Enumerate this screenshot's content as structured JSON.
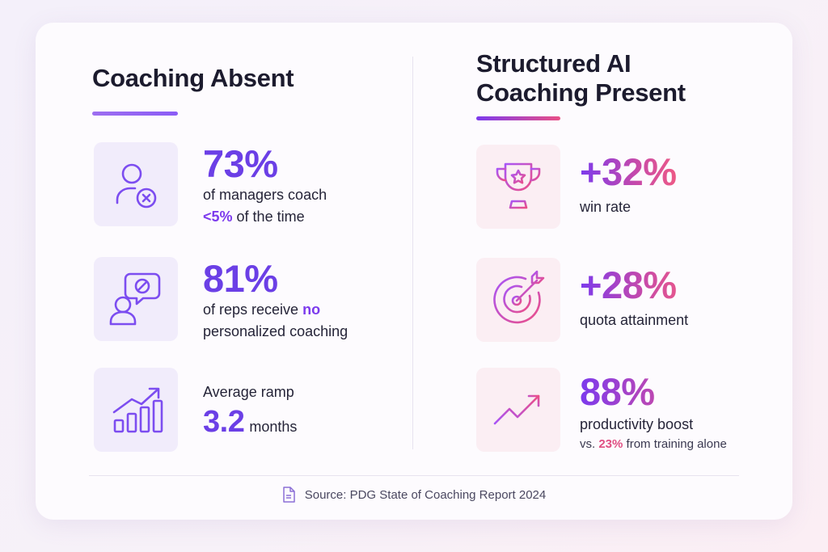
{
  "left": {
    "title": "Coaching Absent",
    "stats": [
      {
        "value": "73%",
        "line1": "of managers coach",
        "hl": "<5%",
        "line2_rest": "of the time",
        "icon": "user-x-icon"
      },
      {
        "value": "81%",
        "line1_pre": "of reps receive",
        "hl": "no",
        "line2": "personalized coaching",
        "icon": "user-chat-blocked-icon"
      },
      {
        "pre": "Average ramp",
        "value": "3.2",
        "unit": "months",
        "icon": "bar-growth-icon"
      }
    ]
  },
  "right": {
    "title_line1": "Structured AI",
    "title_line2": "Coaching Present",
    "stats": [
      {
        "value": "+32%",
        "label": "win rate",
        "icon": "trophy-icon"
      },
      {
        "value": "+28%",
        "label": "quota attainment",
        "icon": "target-icon"
      },
      {
        "value": "88%",
        "label": "productivity boost",
        "sub_pre": "vs.",
        "sub_hl": "23%",
        "sub_post": "from training alone",
        "icon": "trend-up-icon"
      }
    ]
  },
  "source": "Source: PDG State of Coaching Report 2024",
  "colors": {
    "purple": "#7c3aed",
    "pink": "#e94f86"
  }
}
